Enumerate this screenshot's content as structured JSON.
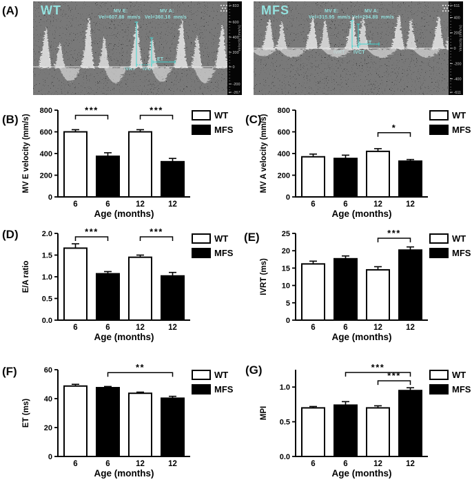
{
  "panel_letters": {
    "a": "(A)",
    "b": "(B)",
    "c": "(C)",
    "d": "(D)",
    "e": "(E)",
    "f": "(F)",
    "g": "(G)"
  },
  "colors": {
    "annotation_cyan": "#3ed8d2",
    "bar_wt_fill": "#ffffff",
    "bar_mfs_fill": "#000000",
    "axis_black": "#000000",
    "us_background": "#050505",
    "us_axis_text": "#cfcfcf"
  },
  "legend": {
    "wt": "WT",
    "mfs": "MFS"
  },
  "ultrasound": {
    "wt": {
      "title": "WT",
      "mve_label": "MV E:",
      "mve_value": "Vel=607.88  mm/s",
      "mva_label": "MV A:",
      "mva_value": "Vel=360.18  mm/s",
      "ivrt": "IVRT",
      "ivct": "IVCT",
      "et": "ET",
      "axis_label": "Velocity (mm/s)",
      "axis_ticks": [
        "833",
        "600",
        "400",
        "200",
        "0",
        "-200",
        "-267"
      ]
    },
    "mfs": {
      "title": "MFS",
      "mve_label": "MV E:",
      "mve_value": "Vel=315.95  mm/s",
      "mva_label": "MV A:",
      "mva_value": "Vel=294.88  mm/s",
      "ivrt": "IVRT",
      "ivct": "IVCT",
      "et": "ET",
      "axis_label": "Velocity (mm/s)",
      "axis_ticks": [
        "611",
        "400",
        "200",
        "0",
        "-200",
        "-400",
        "-611"
      ]
    }
  },
  "chart_data": [
    {
      "id": "B",
      "type": "bar",
      "title": "",
      "ylabel": "MV E velocity (mm/s)",
      "xlabel": "Age (months)",
      "categories": [
        "6",
        "6",
        "12",
        "12"
      ],
      "series": [
        {
          "name": "WT",
          "values": [
            600,
            600
          ]
        },
        {
          "name": "MFS",
          "values": [
            375,
            325
          ]
        }
      ],
      "bars": {
        "values": [
          600,
          375,
          600,
          325
        ],
        "errors": [
          20,
          32,
          20,
          30
        ],
        "series": [
          "WT",
          "MFS",
          "WT",
          "MFS"
        ]
      },
      "ylim": [
        0,
        800
      ],
      "yticks": [
        0,
        200,
        400,
        600,
        800
      ],
      "ytick_labels": [
        "0",
        "200",
        "400",
        "600",
        "800"
      ],
      "brackets": [
        {
          "from": 0,
          "to": 1,
          "label": "***",
          "y": 752
        },
        {
          "from": 2,
          "to": 3,
          "label": "***",
          "y": 752
        }
      ],
      "legend": [
        "WT",
        "MFS"
      ],
      "legend_position": "right-top",
      "grid": false
    },
    {
      "id": "C",
      "type": "bar",
      "title": "",
      "ylabel": "MV A velocity (mm/s)",
      "xlabel": "Age (months)",
      "categories": [
        "6",
        "6",
        "12",
        "12"
      ],
      "series": [
        {
          "name": "WT",
          "values": [
            370,
            420
          ]
        },
        {
          "name": "MFS",
          "values": [
            355,
            330
          ]
        }
      ],
      "bars": {
        "values": [
          370,
          355,
          420,
          330
        ],
        "errors": [
          25,
          30,
          25,
          15
        ],
        "series": [
          "WT",
          "MFS",
          "WT",
          "MFS"
        ]
      },
      "ylim": [
        0,
        800
      ],
      "yticks": [
        0,
        200,
        400,
        600,
        800
      ],
      "ytick_labels": [
        "0",
        "200",
        "400",
        "600",
        "800"
      ],
      "brackets": [
        {
          "from": 2,
          "to": 3,
          "label": "*",
          "y": 592
        }
      ],
      "legend": [
        "WT",
        "MFS"
      ],
      "legend_position": "right-top",
      "grid": false
    },
    {
      "id": "D",
      "type": "bar",
      "title": "",
      "ylabel": "E/A ratio",
      "xlabel": "Age (months)",
      "categories": [
        "6",
        "6",
        "12",
        "12"
      ],
      "series": [
        {
          "name": "WT",
          "values": [
            1.66,
            1.45
          ]
        },
        {
          "name": "MFS",
          "values": [
            1.07,
            1.02
          ]
        }
      ],
      "bars": {
        "values": [
          1.66,
          1.07,
          1.45,
          1.02
        ],
        "errors": [
          0.1,
          0.05,
          0.05,
          0.08
        ],
        "series": [
          "WT",
          "MFS",
          "WT",
          "MFS"
        ]
      },
      "ylim": [
        0,
        2
      ],
      "yticks": [
        0,
        0.5,
        1,
        1.5,
        2
      ],
      "ytick_labels": [
        "0.0",
        "0.5",
        "1.0",
        "1.5",
        "2.0"
      ],
      "brackets": [
        {
          "from": 0,
          "to": 1,
          "label": "***",
          "y": 1.92
        },
        {
          "from": 2,
          "to": 3,
          "label": "***",
          "y": 1.92
        }
      ],
      "legend": [
        "WT",
        "MFS"
      ],
      "legend_position": "right-top",
      "grid": false
    },
    {
      "id": "E",
      "type": "bar",
      "title": "",
      "ylabel": "IVRT (ms)",
      "xlabel": "Age (months)",
      "categories": [
        "6",
        "6",
        "12",
        "12"
      ],
      "series": [
        {
          "name": "WT",
          "values": [
            16.2,
            14.5
          ]
        },
        {
          "name": "MFS",
          "values": [
            17.7,
            20.2
          ]
        }
      ],
      "bars": {
        "values": [
          16.2,
          17.7,
          14.5,
          20.2
        ],
        "errors": [
          0.8,
          0.8,
          0.9,
          0.9
        ],
        "series": [
          "WT",
          "MFS",
          "WT",
          "MFS"
        ]
      },
      "ylim": [
        0,
        25
      ],
      "yticks": [
        0,
        5,
        10,
        15,
        20,
        25
      ],
      "ytick_labels": [
        "0",
        "5",
        "10",
        "15",
        "20",
        "25"
      ],
      "brackets": [
        {
          "from": 2,
          "to": 3,
          "label": "***",
          "y": 23.6
        }
      ],
      "legend": [
        "WT",
        "MFS"
      ],
      "legend_position": "right-top",
      "grid": false
    },
    {
      "id": "F",
      "type": "bar",
      "title": "",
      "ylabel": "ET (ms)",
      "xlabel": "Age (months)",
      "categories": [
        "6",
        "6",
        "12",
        "12"
      ],
      "series": [
        {
          "name": "WT",
          "values": [
            48.7,
            43.7
          ]
        },
        {
          "name": "MFS",
          "values": [
            47.6,
            40.3
          ]
        }
      ],
      "bars": {
        "values": [
          48.7,
          47.6,
          43.7,
          40.3
        ],
        "errors": [
          1.2,
          0.8,
          0.8,
          1.3
        ],
        "series": [
          "WT",
          "MFS",
          "WT",
          "MFS"
        ]
      },
      "ylim": [
        0,
        60
      ],
      "yticks": [
        0,
        20,
        40,
        60
      ],
      "ytick_labels": [
        "0",
        "20",
        "40",
        "60"
      ],
      "brackets": [
        {
          "from": 1,
          "to": 3,
          "label": "**",
          "y": 58
        }
      ],
      "legend": [
        "WT",
        "MFS"
      ],
      "legend_position": "right-top",
      "grid": false
    },
    {
      "id": "G",
      "type": "bar",
      "title": "",
      "ylabel": "MPI",
      "xlabel": "Age (months)",
      "categories": [
        "6",
        "6",
        "12",
        "12"
      ],
      "series": [
        {
          "name": "WT",
          "values": [
            0.7,
            0.7
          ]
        },
        {
          "name": "MFS",
          "values": [
            0.74,
            0.95
          ]
        }
      ],
      "bars": {
        "values": [
          0.7,
          0.74,
          0.7,
          0.95
        ],
        "errors": [
          0.02,
          0.05,
          0.03,
          0.04
        ],
        "series": [
          "WT",
          "MFS",
          "WT",
          "MFS"
        ]
      },
      "ylim": [
        0,
        1.25
      ],
      "yticks": [
        0,
        0.5,
        1
      ],
      "ytick_labels": [
        "0.0",
        "0.5",
        "1.0"
      ],
      "brackets": [
        {
          "from": 1,
          "to": 3,
          "label": "***",
          "y": 1.21
        },
        {
          "from": 2,
          "to": 3,
          "label": "***",
          "y": 1.09
        }
      ],
      "legend": [
        "WT",
        "MFS"
      ],
      "legend_position": "right-top",
      "grid": false
    }
  ]
}
